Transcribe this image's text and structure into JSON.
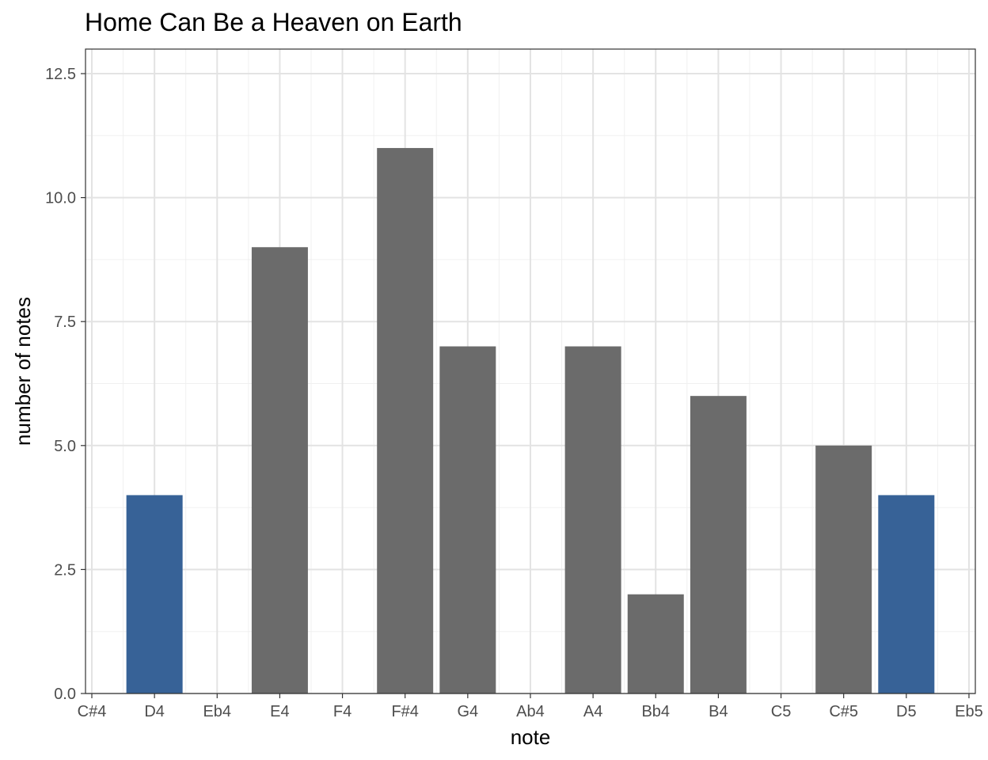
{
  "chart_data": {
    "type": "bar",
    "title": "Home Can Be a Heaven on Earth",
    "xlabel": "note",
    "ylabel": "number of notes",
    "categories": [
      "C#4",
      "D4",
      "Eb4",
      "E4",
      "F4",
      "F#4",
      "G4",
      "Ab4",
      "A4",
      "Bb4",
      "B4",
      "C5",
      "C#5",
      "D5",
      "Eb5"
    ],
    "values": [
      0,
      4,
      0,
      9,
      0,
      11,
      7,
      0,
      7,
      2,
      6,
      0,
      5,
      4,
      0
    ],
    "highlighted": [
      "D4",
      "D5"
    ],
    "colors": {
      "default": "#6b6b6b",
      "highlight": "#376297"
    },
    "ylim": [
      0,
      13
    ],
    "yticks": [
      0,
      2.5,
      5,
      7.5,
      10,
      12.5
    ],
    "ytick_labels": [
      "0.0",
      "2.5",
      "5.0",
      "7.5",
      "10.0",
      "12.5"
    ],
    "grid": true
  }
}
